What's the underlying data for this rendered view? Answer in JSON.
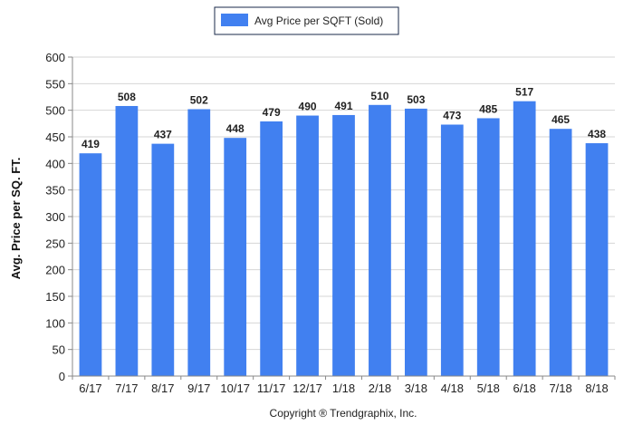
{
  "chart_data": {
    "type": "bar",
    "legend": "Avg Price per SQFT (Sold)",
    "legend_position": "top-center",
    "ylabel": "Avg. Price per SQ. FT.",
    "xlabel": "",
    "ylim": [
      0,
      600
    ],
    "yticks": [
      0,
      50,
      100,
      150,
      200,
      250,
      300,
      350,
      400,
      450,
      500,
      550,
      600
    ],
    "grid": true,
    "categories": [
      "6/17",
      "7/17",
      "8/17",
      "9/17",
      "10/17",
      "11/17",
      "12/17",
      "1/18",
      "2/18",
      "3/18",
      "4/18",
      "5/18",
      "6/18",
      "7/18",
      "8/18"
    ],
    "series": [
      {
        "name": "Avg Price per SQFT (Sold)",
        "values": [
          419,
          508,
          437,
          502,
          448,
          479,
          490,
          491,
          510,
          503,
          473,
          485,
          517,
          465,
          438
        ],
        "color": "#4180f0"
      }
    ],
    "data_labels": true
  },
  "footer": {
    "copyright": "Copyright ® Trendgraphix, Inc."
  },
  "colors": {
    "bar": "#4180f0",
    "grid": "#d6d6d6",
    "axis": "#888888"
  }
}
